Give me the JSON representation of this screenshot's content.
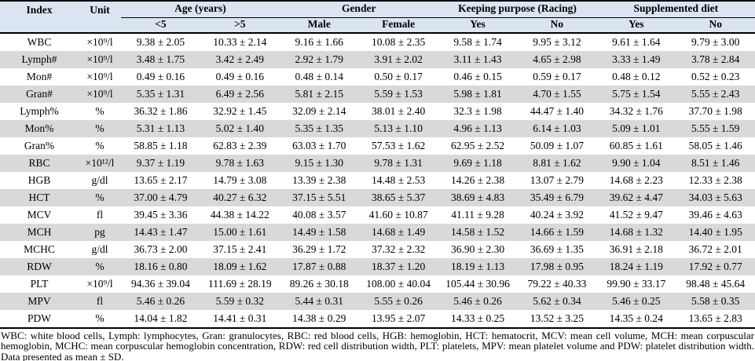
{
  "table": {
    "header": {
      "index_label": "Index",
      "unit_label": "Unit",
      "groups": [
        {
          "label": "Age (years)",
          "sub": [
            "<5",
            ">5"
          ]
        },
        {
          "label": "Gender",
          "sub": [
            "Male",
            "Female"
          ]
        },
        {
          "label": "Keeping purpose (Racing)",
          "sub": [
            "Yes",
            "No"
          ]
        },
        {
          "label": "Supplemented diet",
          "sub": [
            "Yes",
            "No"
          ]
        }
      ]
    },
    "rows": [
      {
        "index": "WBC",
        "unit": "×10⁹/l",
        "values": [
          "9.38 ± 2.05",
          "10.33 ± 2.14",
          "9.16 ± 1.66",
          "10.08 ± 2.35",
          "9.58 ± 1.74",
          "9.95 ± 3.12",
          "9.61 ± 1.64",
          "9.79 ± 3.00"
        ]
      },
      {
        "index": "Lymph#",
        "unit": "×10⁹/l",
        "values": [
          "3.48 ± 1.75",
          "3.42 ± 2.49",
          "2.92 ± 1.79",
          "3.91 ± 2.02",
          "3.11 ± 1.43",
          "4.65 ± 2.98",
          "3.33 ± 1.49",
          "3.78 ± 2.84"
        ]
      },
      {
        "index": "Mon#",
        "unit": "×10⁹/l",
        "values": [
          "0.49 ± 0.16",
          "0.49 ± 0.16",
          "0.48 ± 0.14",
          "0.50 ± 0.17",
          "0.46 ± 0.15",
          "0.59 ± 0.17",
          "0.48 ± 0.12",
          "0.52 ± 0.23"
        ]
      },
      {
        "index": "Gran#",
        "unit": "×10⁹/l",
        "values": [
          "5.35 ± 1.31",
          "6.49 ± 2.56",
          "5.81 ± 2.15",
          "5.59 ± 1.53",
          "5.98 ± 1.81",
          "4.70 ± 1.55",
          "5.75 ± 1.54",
          "5.55 ± 2.43"
        ]
      },
      {
        "index": "Lymph%",
        "unit": "%",
        "values": [
          "36.32 ± 1.86",
          "32.92 ± 1.45",
          "32.09 ± 2.14",
          "38.01 ± 2.40",
          "32.3 ± 1.98",
          "44.47 ± 1.40",
          "34.32 ± 1.76",
          "37.70 ± 1.98"
        ]
      },
      {
        "index": "Mon%",
        "unit": "%",
        "values": [
          "5.31 ± 1.13",
          "5.02 ± 1.40",
          "5.35 ± 1.35",
          "5.13 ± 1.10",
          "4.96 ± 1.13",
          "6.14 ± 1.03",
          "5.09 ± 1.01",
          "5.55 ± 1.59"
        ]
      },
      {
        "index": "Gran%",
        "unit": "%",
        "values": [
          "58.85 ± 1.18",
          "62.83 ± 2.39",
          "63.03 ± 1.70",
          "57.53 ± 1.62",
          "62.95 ± 2.52",
          "50.09 ± 1.07",
          "60.85 ± 1.61",
          "58.05 ± 1.46"
        ]
      },
      {
        "index": "RBC",
        "unit": "×10¹²/l",
        "values": [
          "9.37 ± 1.19",
          "9.78 ± 1.63",
          "9.15 ± 1.30",
          "9.78 ± 1.31",
          "9.69 ± 1.18",
          "8.81 ± 1.62",
          "9.90 ± 1.04",
          "8.51 ± 1.46"
        ]
      },
      {
        "index": "HGB",
        "unit": "g/dl",
        "values": [
          "13.65 ± 2.17",
          "14.79 ± 3.08",
          "13.39 ± 2.38",
          "14.48 ± 2.53",
          "14.26 ± 2.38",
          "13.07 ± 2.79",
          "14.68 ± 2.23",
          "12.33 ± 2.38"
        ]
      },
      {
        "index": "HCT",
        "unit": "%",
        "values": [
          "37.00 ± 4.79",
          "40.27 ± 6.32",
          "37.15 ± 5.51",
          "38.65 ± 5.37",
          "38.69 ± 4.83",
          "35.49 ± 6.79",
          "39.62 ± 4.47",
          "34.03 ± 5.63"
        ]
      },
      {
        "index": "MCV",
        "unit": "fl",
        "values": [
          "39.45 ± 3.36",
          "44.38 ± 14.22",
          "40.08 ± 3.57",
          "41.60 ± 10.87",
          "41.11 ± 9.28",
          "40.24 ± 3.92",
          "41.52 ± 9.47",
          "39.46 ± 4.63"
        ]
      },
      {
        "index": "MCH",
        "unit": "pg",
        "values": [
          "14.43 ± 1.47",
          "15.00 ± 1.61",
          "14.49 ± 1.58",
          "14.68 ± 1.49",
          "14.58 ± 1.52",
          "14.66 ± 1.59",
          "14.68 ± 1.32",
          "14.40 ± 1.95"
        ]
      },
      {
        "index": "MCHC",
        "unit": "g/dl",
        "values": [
          "36.73 ± 2.00",
          "37.15 ± 2.41",
          "36.29 ± 1.72",
          "37.32 ± 2.32",
          "36.90 ± 2.30",
          "36.69 ± 1.35",
          "36.91 ± 2.18",
          "36.72 ± 2.01"
        ]
      },
      {
        "index": "RDW",
        "unit": "%",
        "values": [
          "18.16 ± 0.80",
          "18.09 ± 1.62",
          "17.87 ± 0.88",
          "18.37 ± 1.20",
          "18.19 ± 1.13",
          "17.98 ± 0.95",
          "18.24 ± 1.19",
          "17.92 ± 0.77"
        ]
      },
      {
        "index": "PLT",
        "unit": "×10⁹/l",
        "values": [
          "94.36 ± 39.04",
          "111.69 ± 28.19",
          "89.26 ± 30.18",
          "108.00 ± 40.04",
          "105.44 ± 30.96",
          "79.22 ± 40.33",
          "99.90 ± 33.17",
          "98.48 ± 45.64"
        ]
      },
      {
        "index": "MPV",
        "unit": "fl",
        "values": [
          "5.46 ± 0.26",
          "5.59 ± 0.32",
          "5.44 ± 0.31",
          "5.55 ± 0.26",
          "5.46 ± 0.26",
          "5.62 ± 0.34",
          "5.46 ± 0.25",
          "5.58 ± 0.35"
        ]
      },
      {
        "index": "PDW",
        "unit": "%",
        "values": [
          "14.04 ± 1.82",
          "14.41 ± 0.31",
          "14.38 ± 0.29",
          "13.95 ± 2.07",
          "14.33 ± 0.25",
          "13.52 ± 3.25",
          "14.35 ± 0.24",
          "13.65 ± 2.83"
        ]
      }
    ],
    "footnote": "WBC: white blood cells, Lymph: lymphocytes, Gran: granulocytes, RBC: red blood cells, HGB: hemoglobin, HCT: hematocrit, MCV: mean cell volume, MCH: mean corpuscular hemoglobin, MCHC: mean corpuscular hemoglobin concentration, RDW: red cell distribution width, PLT: platelets, MPV: mean platelet volume and PDW: platelet distribution width. Data presented as mean ± SD."
  },
  "colors": {
    "header_bg": "#dbe5f1",
    "stripe_bg": "#d9d9d9",
    "rule": "#000000"
  }
}
